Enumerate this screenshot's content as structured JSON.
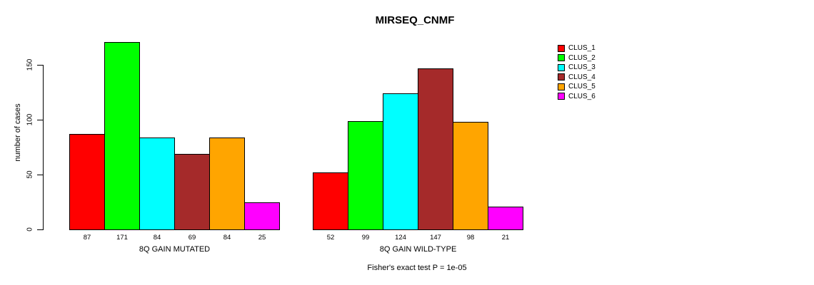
{
  "chart_data": {
    "type": "bar",
    "title": "MIRSEQ_CNMF",
    "ylabel": "number of cases",
    "xlabel": "",
    "categories": [
      "8Q GAIN MUTATED",
      "8Q GAIN WILD-TYPE"
    ],
    "series": [
      {
        "name": "CLUS_1",
        "color": "#FF0000",
        "values": [
          87,
          52
        ]
      },
      {
        "name": "CLUS_2",
        "color": "#00FF00",
        "values": [
          171,
          99
        ]
      },
      {
        "name": "CLUS_3",
        "color": "#00FFFF",
        "values": [
          84,
          124
        ]
      },
      {
        "name": "CLUS_4",
        "color": "#A52A2A",
        "values": [
          69,
          147
        ]
      },
      {
        "name": "CLUS_5",
        "color": "#FFA500",
        "values": [
          84,
          98
        ]
      },
      {
        "name": "CLUS_6",
        "color": "#FF00FF",
        "values": [
          25,
          21
        ]
      }
    ],
    "yticks": [
      0,
      50,
      100,
      150
    ],
    "ylim": [
      0,
      175
    ],
    "grid": false,
    "legend_position": "right",
    "bar_value_labels": [
      [
        87,
        171,
        84,
        69,
        84,
        25
      ],
      [
        52,
        99,
        124,
        147,
        98,
        21
      ]
    ],
    "annotation": "Fisher's exact test P = 1e-05"
  },
  "colors": {
    "background": "#FFFFFF",
    "axis": "#000000",
    "text": "#000000"
  }
}
